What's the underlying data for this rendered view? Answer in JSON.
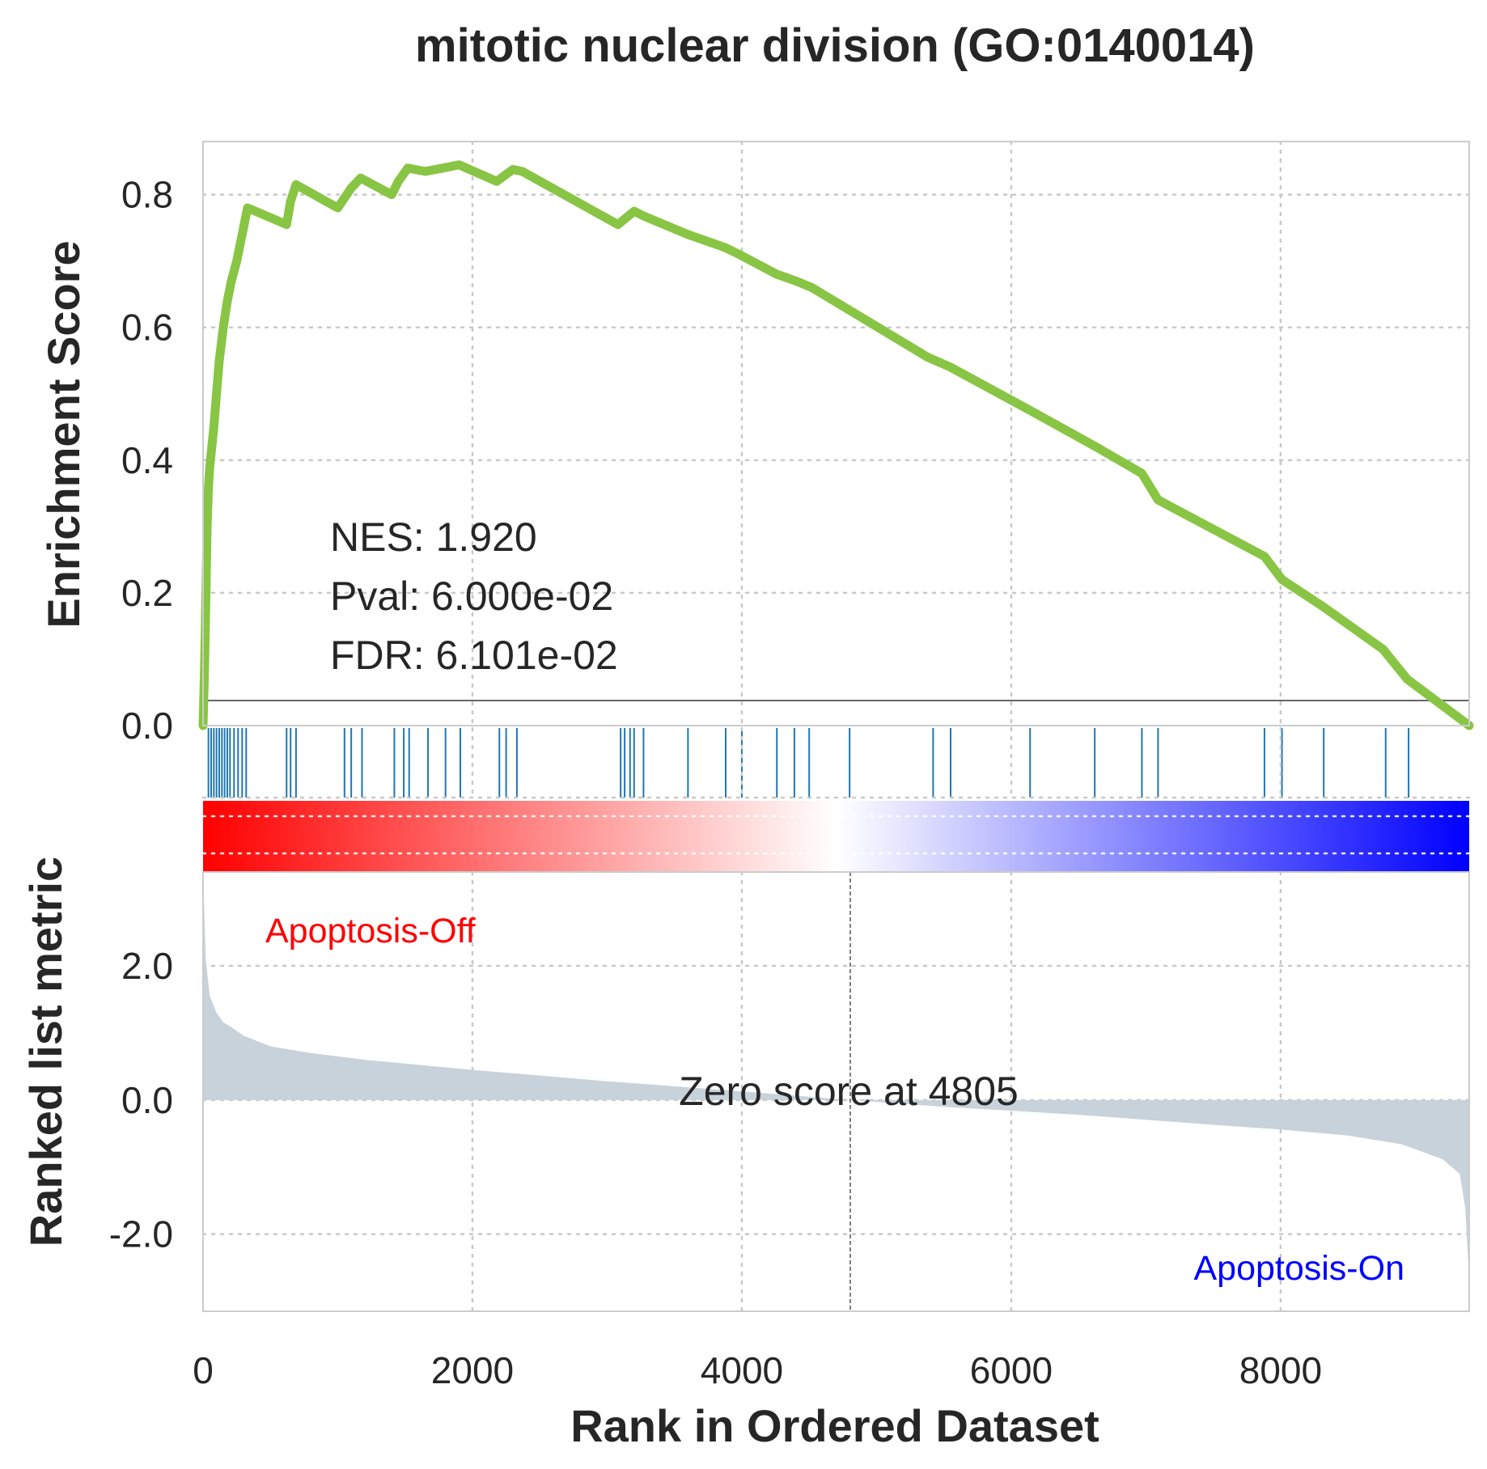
{
  "chart_data": {
    "type": "line",
    "title": "mitotic nuclear division (GO:0140014)",
    "xlabel": "Rank in Ordered Dataset",
    "xlim": [
      0,
      9400
    ],
    "x_ticks": [
      0,
      2000,
      4000,
      6000,
      8000
    ],
    "grid": true,
    "enrichment_panel": {
      "ylabel": "Enrichment Score",
      "ylim": [
        0,
        0.88
      ],
      "y_ticks": [
        "0.0",
        "0.2",
        "0.4",
        "0.6",
        "0.8"
      ],
      "y_tick_values": [
        0,
        0.2,
        0.4,
        0.6,
        0.8
      ],
      "line_color": "#88c544",
      "series": [
        {
          "x": [
            0,
            10,
            20,
            30,
            40,
            50,
            60,
            80,
            100,
            120,
            150,
            180,
            210,
            250,
            290,
            330,
            620,
            650,
            690,
            1000,
            1100,
            1170,
            1400,
            1450,
            1520,
            1650,
            1780,
            1900,
            2180,
            2300,
            2370,
            3080,
            3200,
            3270,
            3600,
            3880,
            3980,
            4260,
            4400,
            4520,
            5380,
            5550,
            6140,
            6630,
            6970,
            7090,
            7880,
            8010,
            8310,
            8760,
            8940,
            9400
          ],
          "y": [
            0,
            0.08,
            0.18,
            0.3,
            0.36,
            0.39,
            0.41,
            0.45,
            0.5,
            0.55,
            0.6,
            0.64,
            0.67,
            0.7,
            0.74,
            0.78,
            0.755,
            0.79,
            0.815,
            0.78,
            0.81,
            0.825,
            0.8,
            0.82,
            0.84,
            0.835,
            0.84,
            0.845,
            0.82,
            0.838,
            0.835,
            0.755,
            0.775,
            0.768,
            0.74,
            0.72,
            0.71,
            0.68,
            0.67,
            0.66,
            0.555,
            0.54,
            0.475,
            0.42,
            0.38,
            0.34,
            0.255,
            0.22,
            0.18,
            0.115,
            0.07,
            0
          ]
        }
      ],
      "hit_color": "#1f77b4",
      "hits": [
        40,
        60,
        80,
        100,
        120,
        140,
        160,
        180,
        200,
        230,
        260,
        290,
        320,
        620,
        650,
        690,
        1050,
        1100,
        1180,
        1420,
        1490,
        1530,
        1670,
        1800,
        1910,
        2200,
        2250,
        2330,
        3100,
        3130,
        3170,
        3200,
        3270,
        3600,
        3880,
        4000,
        4260,
        4390,
        4500,
        4800,
        5420,
        5550,
        6140,
        6620,
        6970,
        7090,
        7880,
        8010,
        8320,
        8780,
        8950
      ],
      "annotations": {
        "nes": "NES: 1.920",
        "pval": "Pval: 6.000e-02",
        "fdr": "FDR: 6.101e-02"
      }
    },
    "color_bar": {
      "from_color": "#ff0000",
      "mid_color": "#ffffff",
      "to_color": "#0000ff"
    },
    "ranked_panel": {
      "ylabel": "Ranked list metric",
      "ylim": [
        -3.15,
        3.4
      ],
      "y_ticks": [
        "-2.0",
        "0.0",
        "2.0"
      ],
      "y_tick_values": [
        -2,
        0,
        2
      ],
      "fill_color": "#c8d2da",
      "x": [
        0,
        20,
        50,
        100,
        150,
        200,
        300,
        500,
        800,
        1200,
        2000,
        3000,
        4000,
        4805,
        5500,
        6500,
        7500,
        8000,
        8500,
        8900,
        9200,
        9330,
        9370,
        9390,
        9400
      ],
      "y": [
        3.35,
        2.1,
        1.55,
        1.3,
        1.16,
        1.1,
        0.96,
        0.8,
        0.7,
        0.6,
        0.45,
        0.28,
        0.13,
        0,
        -0.1,
        -0.22,
        -0.37,
        -0.44,
        -0.53,
        -0.66,
        -0.88,
        -1.1,
        -1.6,
        -2.3,
        -2.75
      ],
      "zero_cross": 4805,
      "zero_label": "Zero score at 4805",
      "pos_label": "Apoptosis-Off",
      "neg_label": "Apoptosis-On",
      "pos_color": "#ff0000",
      "neg_color": "#0000ff"
    }
  }
}
